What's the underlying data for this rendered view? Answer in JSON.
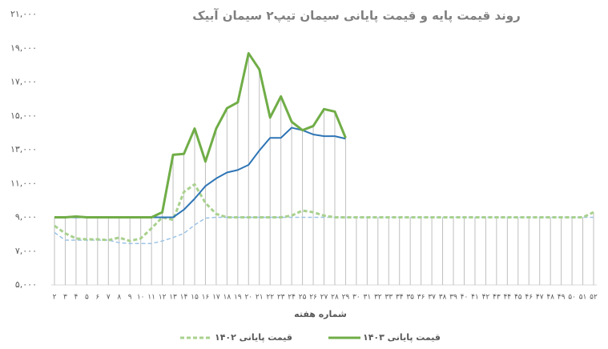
{
  "chart_data": {
    "type": "line",
    "title": "روند قیمت پایه و قیمت پایانی سیمان تیپ۲ سیمان آبیک",
    "x_label": "شماره هفته",
    "categories": [
      "۲",
      "۳",
      "۴",
      "۵",
      "۶",
      "۷",
      "۸",
      "۹",
      "۱۰",
      "۱۱",
      "۱۲",
      "۱۳",
      "۱۴",
      "۱۵",
      "۱۶",
      "۱۷",
      "۱۸",
      "۱۹",
      "۲۰",
      "۲۱",
      "۲۲",
      "۲۳",
      "۲۴",
      "۲۵",
      "۲۶",
      "۲۷",
      "۲۸",
      "۲۹",
      "۳۰",
      "۳۱",
      "۳۲",
      "۳۳",
      "۳۴",
      "۳۵",
      "۳۶",
      "۳۷",
      "۳۸",
      "۳۹",
      "۴۰",
      "۴۱",
      "۴۲",
      "۴۳",
      "۴۴",
      "۴۵",
      "۴۶",
      "۴۷",
      "۴۸",
      "۴۹",
      "۵۰",
      "۵۱",
      "۵۲"
    ],
    "ylim": [
      5000,
      21000
    ],
    "yticks": [
      {
        "value": 5000,
        "label": "۵,۰۰۰"
      },
      {
        "value": 7000,
        "label": "۷,۰۰۰"
      },
      {
        "value": 9000,
        "label": "۹,۰۰۰"
      },
      {
        "value": 11000,
        "label": "۱۱,۰۰۰"
      },
      {
        "value": 13000,
        "label": "۱۳,۰۰۰"
      },
      {
        "value": 15000,
        "label": "۱۵,۰۰۰"
      },
      {
        "value": 17000,
        "label": "۱۷,۰۰۰"
      },
      {
        "value": 19000,
        "label": "۱۹,۰۰۰"
      },
      {
        "value": 21000,
        "label": "۲۱,۰۰۰"
      }
    ],
    "drop_lines": true,
    "series": [
      {
        "color": "#9dc3e6",
        "dashed": true,
        "width": 1.5,
        "values": [
          8100,
          7650,
          7650,
          7650,
          7650,
          7650,
          7500,
          7450,
          7450,
          7450,
          7600,
          7800,
          8050,
          8550,
          8950,
          9000,
          9000,
          9000,
          9000,
          9000,
          9000,
          9000,
          9000,
          9000,
          9000,
          9000,
          9000,
          9000,
          9000,
          9000,
          9000,
          9000,
          9000,
          9000,
          9000,
          9000,
          9000,
          9000,
          9000,
          9000,
          9000,
          9000,
          9000,
          9000,
          9000,
          9000,
          9000,
          9000,
          9000,
          9000,
          9000
        ]
      },
      {
        "name": "قیمت پایانی ۱۴۰۲",
        "color": "#a9d18e",
        "dashed": true,
        "width": 3,
        "values": [
          8500,
          8050,
          7750,
          7700,
          7700,
          7650,
          7800,
          7600,
          7750,
          8350,
          9000,
          8850,
          10500,
          10950,
          9850,
          9200,
          9000,
          9000,
          9000,
          9000,
          9000,
          9000,
          9100,
          9400,
          9300,
          9100,
          9000,
          9000,
          9000,
          9000,
          9000,
          9000,
          9000,
          9000,
          9000,
          9000,
          9000,
          9000,
          9000,
          9000,
          9000,
          9000,
          9000,
          9000,
          9000,
          9000,
          9000,
          9000,
          9000,
          9000,
          9300
        ]
      },
      {
        "color": "#2e75b6",
        "dashed": false,
        "width": 2,
        "values": [
          9000,
          9000,
          9000,
          9000,
          9000,
          9000,
          9000,
          9000,
          9000,
          9000,
          9000,
          9000,
          9450,
          10100,
          10850,
          11300,
          11650,
          11800,
          12100,
          12950,
          13700,
          13700,
          14300,
          14150,
          13900,
          13800,
          13800,
          13650,
          null,
          null,
          null,
          null,
          null,
          null,
          null,
          null,
          null,
          null,
          null,
          null,
          null,
          null,
          null,
          null,
          null,
          null,
          null,
          null,
          null,
          null,
          null
        ]
      },
      {
        "name": "قیمت پایانی ۱۴۰۳",
        "color": "#70ad47",
        "dashed": false,
        "width": 3,
        "values": [
          9000,
          9000,
          9050,
          9000,
          9000,
          9000,
          9000,
          9000,
          9000,
          9000,
          9300,
          12700,
          12750,
          14250,
          12300,
          14250,
          15450,
          15800,
          18700,
          17750,
          14900,
          16150,
          14650,
          14150,
          14400,
          15400,
          15250,
          13700,
          null,
          null,
          null,
          null,
          null,
          null,
          null,
          null,
          null,
          null,
          null,
          null,
          null,
          null,
          null,
          null,
          null,
          null,
          null,
          null,
          null,
          null,
          null
        ]
      }
    ]
  }
}
